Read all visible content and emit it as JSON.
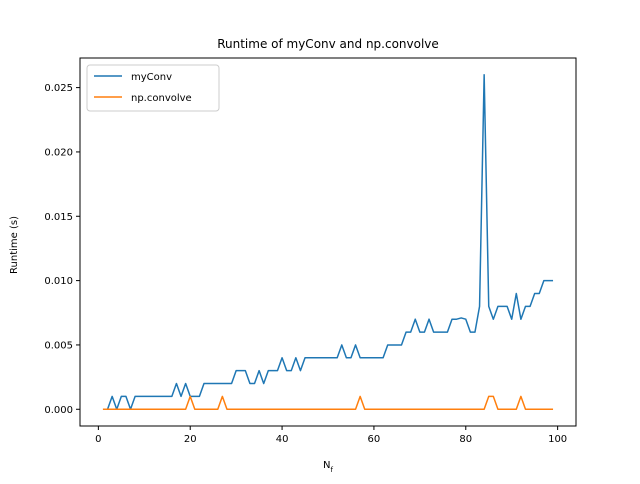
{
  "chart_data": {
    "type": "line",
    "title": "Runtime of myConv and np.convolve",
    "xlabel": "N",
    "xlabel_subscript": "f",
    "ylabel": "Runtime (s)",
    "xlim": [
      -4,
      104
    ],
    "ylim": [
      -0.0013,
      0.0273
    ],
    "xticks": [
      0,
      20,
      40,
      60,
      80,
      100
    ],
    "yticks": [
      0.0,
      0.005,
      0.01,
      0.015,
      0.02,
      0.025
    ],
    "ytick_labels": [
      "0.000",
      "0.005",
      "0.010",
      "0.015",
      "0.020",
      "0.025"
    ],
    "grid": false,
    "legend_position": "top-left",
    "x": [
      1,
      2,
      3,
      4,
      5,
      6,
      7,
      8,
      9,
      10,
      11,
      12,
      13,
      14,
      15,
      16,
      17,
      18,
      19,
      20,
      21,
      22,
      23,
      24,
      25,
      26,
      27,
      28,
      29,
      30,
      31,
      32,
      33,
      34,
      35,
      36,
      37,
      38,
      39,
      40,
      41,
      42,
      43,
      44,
      45,
      46,
      47,
      48,
      49,
      50,
      51,
      52,
      53,
      54,
      55,
      56,
      57,
      58,
      59,
      60,
      61,
      62,
      63,
      64,
      65,
      66,
      67,
      68,
      69,
      70,
      71,
      72,
      73,
      74,
      75,
      76,
      77,
      78,
      79,
      80,
      81,
      82,
      83,
      84,
      85,
      86,
      87,
      88,
      89,
      90,
      91,
      92,
      93,
      94,
      95,
      96,
      97,
      98,
      99
    ],
    "series": [
      {
        "name": "myConv",
        "color": "#1f77b4",
        "values": [
          0,
          0,
          0.001,
          0,
          0.001,
          0.001,
          0,
          0.001,
          0.001,
          0.001,
          0.001,
          0.001,
          0.001,
          0.001,
          0.001,
          0.001,
          0.002,
          0.001,
          0.002,
          0.001,
          0.001,
          0.001,
          0.002,
          0.002,
          0.002,
          0.002,
          0.002,
          0.002,
          0.002,
          0.003,
          0.003,
          0.003,
          0.002,
          0.002,
          0.003,
          0.002,
          0.003,
          0.003,
          0.003,
          0.004,
          0.003,
          0.003,
          0.004,
          0.003,
          0.004,
          0.004,
          0.004,
          0.004,
          0.004,
          0.004,
          0.004,
          0.004,
          0.005,
          0.004,
          0.004,
          0.005,
          0.004,
          0.004,
          0.004,
          0.004,
          0.004,
          0.004,
          0.005,
          0.005,
          0.005,
          0.005,
          0.006,
          0.006,
          0.007,
          0.006,
          0.006,
          0.007,
          0.006,
          0.006,
          0.006,
          0.006,
          0.007,
          0.007,
          0.0071,
          0.007,
          0.006,
          0.006,
          0.008,
          0.026,
          0.008,
          0.007,
          0.008,
          0.008,
          0.008,
          0.007,
          0.009,
          0.007,
          0.008,
          0.008,
          0.009,
          0.009,
          0.01,
          0.01,
          0.01
        ]
      },
      {
        "name": "np.convolve",
        "color": "#ff7f0e",
        "values": [
          0,
          0,
          0,
          0,
          0,
          0,
          0,
          0,
          0,
          0,
          0,
          0,
          0,
          0,
          0,
          0,
          0,
          0,
          0,
          0.001,
          0,
          0,
          0,
          0,
          0,
          0,
          0.001,
          0,
          0,
          0,
          0,
          0,
          0,
          0,
          0,
          0,
          0,
          0,
          0,
          0,
          0,
          0,
          0,
          0,
          0,
          0,
          0,
          0,
          0,
          0,
          0,
          0,
          0,
          0,
          0,
          0,
          0.001,
          0,
          0,
          0,
          0,
          0,
          0,
          0,
          0,
          0,
          0,
          0,
          0,
          0,
          0,
          0,
          0,
          0,
          0,
          0,
          0,
          0,
          0,
          0,
          0,
          0,
          0,
          0,
          0.001,
          0.001,
          0,
          0,
          0,
          0,
          0,
          0.001,
          0,
          0,
          0,
          0,
          0,
          0,
          0
        ]
      }
    ]
  }
}
